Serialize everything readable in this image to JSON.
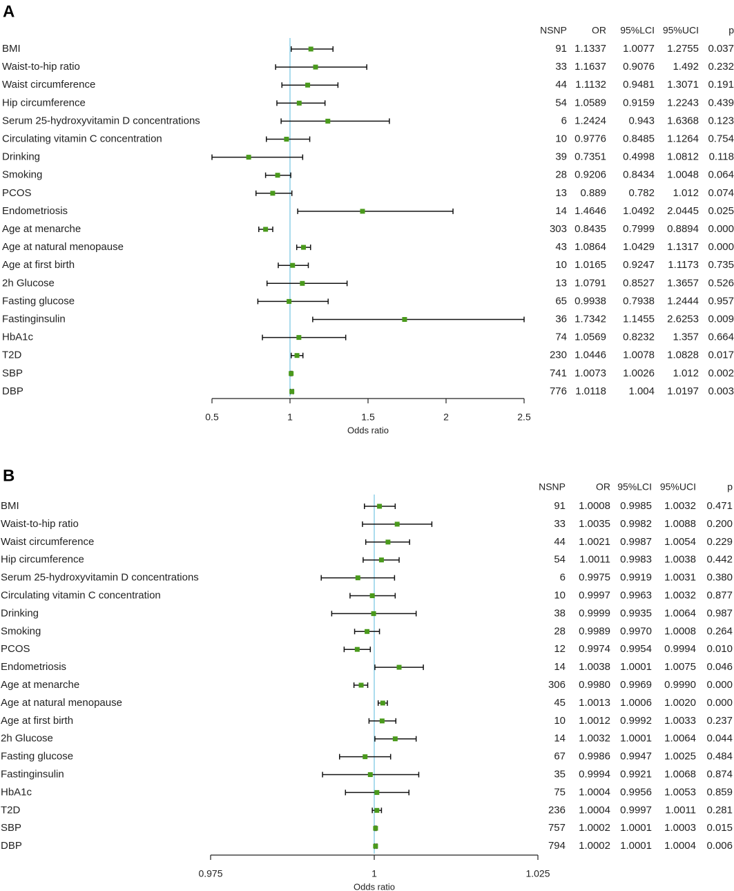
{
  "chart_data": [
    {
      "type": "forest",
      "panel": "A",
      "xlabel": "Odds ratio",
      "xlim": [
        0.5,
        2.5
      ],
      "xticks": [
        "0.5",
        "1",
        "1.5",
        "2",
        "2.5"
      ],
      "xtick_values": [
        0.5,
        1,
        1.5,
        2,
        2.5
      ],
      "reference": 1,
      "columns": [
        "NSNP",
        "OR",
        "95%LCI",
        "95%UCI",
        "p"
      ],
      "rows": [
        {
          "label": "BMI",
          "nsnp": "91",
          "or": "1.1337",
          "lci": "1.0077",
          "uci": "1.2755",
          "p": "0.037"
        },
        {
          "label": "Waist-to-hip ratio",
          "nsnp": "33",
          "or": "1.1637",
          "lci": "0.9076",
          "uci": "1.492",
          "p": "0.232"
        },
        {
          "label": "Waist circumference",
          "nsnp": "44",
          "or": "1.1132",
          "lci": "0.9481",
          "uci": "1.3071",
          "p": "0.191"
        },
        {
          "label": "Hip circumference",
          "nsnp": "54",
          "or": "1.0589",
          "lci": "0.9159",
          "uci": "1.2243",
          "p": "0.439"
        },
        {
          "label": "Serum 25-hydroxyvitamin D concentrations",
          "nsnp": "6",
          "or": "1.2424",
          "lci": "0.943",
          "uci": "1.6368",
          "p": "0.123"
        },
        {
          "label": "Circulating vitamin C concentration",
          "nsnp": "10",
          "or": "0.9776",
          "lci": "0.8485",
          "uci": "1.1264",
          "p": "0.754"
        },
        {
          "label": "Drinking",
          "nsnp": "39",
          "or": "0.7351",
          "lci": "0.4998",
          "uci": "1.0812",
          "p": "0.118"
        },
        {
          "label": "Smoking",
          "nsnp": "28",
          "or": "0.9206",
          "lci": "0.8434",
          "uci": "1.0048",
          "p": "0.064"
        },
        {
          "label": "PCOS",
          "nsnp": "13",
          "or": "0.889",
          "lci": "0.782",
          "uci": "1.012",
          "p": "0.074"
        },
        {
          "label": "Endometriosis",
          "nsnp": "14",
          "or": "1.4646",
          "lci": "1.0492",
          "uci": "2.0445",
          "p": "0.025"
        },
        {
          "label": "Age at menarche",
          "nsnp": "303",
          "or": "0.8435",
          "lci": "0.7999",
          "uci": "0.8894",
          "p": "0.000"
        },
        {
          "label": "Age at natural menopause",
          "nsnp": "43",
          "or": "1.0864",
          "lci": "1.0429",
          "uci": "1.1317",
          "p": "0.000"
        },
        {
          "label": "Age at first birth",
          "nsnp": "10",
          "or": "1.0165",
          "lci": "0.9247",
          "uci": "1.1173",
          "p": "0.735"
        },
        {
          "label": "2h Glucose",
          "nsnp": "13",
          "or": "1.0791",
          "lci": "0.8527",
          "uci": "1.3657",
          "p": "0.526"
        },
        {
          "label": "Fasting glucose",
          "nsnp": "65",
          "or": "0.9938",
          "lci": "0.7938",
          "uci": "1.2444",
          "p": "0.957"
        },
        {
          "label": "Fastinginsulin",
          "nsnp": "36",
          "or": "1.7342",
          "lci": "1.1455",
          "uci": "2.6253",
          "p": "0.009"
        },
        {
          "label": "HbA1c",
          "nsnp": "74",
          "or": "1.0569",
          "lci": "0.8232",
          "uci": "1.357",
          "p": "0.664"
        },
        {
          "label": "T2D",
          "nsnp": "230",
          "or": "1.0446",
          "lci": "1.0078",
          "uci": "1.0828",
          "p": "0.017"
        },
        {
          "label": "SBP",
          "nsnp": "741",
          "or": "1.0073",
          "lci": "1.0026",
          "uci": "1.012",
          "p": "0.002"
        },
        {
          "label": "DBP",
          "nsnp": "776",
          "or": "1.0118",
          "lci": "1.004",
          "uci": "1.0197",
          "p": "0.003"
        }
      ]
    },
    {
      "type": "forest",
      "panel": "B",
      "xlabel": "Odds ratio",
      "xlim": [
        0.975,
        1.025
      ],
      "xticks": [
        "0.975",
        "1",
        "1.025"
      ],
      "xtick_values": [
        0.975,
        1,
        1.025
      ],
      "reference": 1,
      "columns": [
        "NSNP",
        "OR",
        "95%LCI",
        "95%UCI",
        "p"
      ],
      "rows": [
        {
          "label": "BMI",
          "nsnp": "91",
          "or": "1.0008",
          "lci": "0.9985",
          "uci": "1.0032",
          "p": "0.471"
        },
        {
          "label": "Waist-to-hip ratio",
          "nsnp": "33",
          "or": "1.0035",
          "lci": "0.9982",
          "uci": "1.0088",
          "p": "0.200"
        },
        {
          "label": "Waist circumference",
          "nsnp": "44",
          "or": "1.0021",
          "lci": "0.9987",
          "uci": "1.0054",
          "p": "0.229"
        },
        {
          "label": "Hip circumference",
          "nsnp": "54",
          "or": "1.0011",
          "lci": "0.9983",
          "uci": "1.0038",
          "p": "0.442"
        },
        {
          "label": "Serum 25-hydroxyvitamin D concentrations",
          "nsnp": "6",
          "or": "0.9975",
          "lci": "0.9919",
          "uci": "1.0031",
          "p": "0.380"
        },
        {
          "label": "Circulating vitamin C concentration",
          "nsnp": "10",
          "or": "0.9997",
          "lci": "0.9963",
          "uci": "1.0032",
          "p": "0.877"
        },
        {
          "label": "Drinking",
          "nsnp": "38",
          "or": "0.9999",
          "lci": "0.9935",
          "uci": "1.0064",
          "p": "0.987"
        },
        {
          "label": "Smoking",
          "nsnp": "28",
          "or": "0.9989",
          "lci": "0.9970",
          "uci": "1.0008",
          "p": "0.264"
        },
        {
          "label": "PCOS",
          "nsnp": "12",
          "or": "0.9974",
          "lci": "0.9954",
          "uci": "0.9994",
          "p": "0.010"
        },
        {
          "label": "Endometriosis",
          "nsnp": "14",
          "or": "1.0038",
          "lci": "1.0001",
          "uci": "1.0075",
          "p": "0.046"
        },
        {
          "label": "Age at menarche",
          "nsnp": "306",
          "or": "0.9980",
          "lci": "0.9969",
          "uci": "0.9990",
          "p": "0.000"
        },
        {
          "label": "Age at natural menopause",
          "nsnp": "45",
          "or": "1.0013",
          "lci": "1.0006",
          "uci": "1.0020",
          "p": "0.000"
        },
        {
          "label": "Age at first birth",
          "nsnp": "10",
          "or": "1.0012",
          "lci": "0.9992",
          "uci": "1.0033",
          "p": "0.237"
        },
        {
          "label": "2h Glucose",
          "nsnp": "14",
          "or": "1.0032",
          "lci": "1.0001",
          "uci": "1.0064",
          "p": "0.044"
        },
        {
          "label": "Fasting glucose",
          "nsnp": "67",
          "or": "0.9986",
          "lci": "0.9947",
          "uci": "1.0025",
          "p": "0.484"
        },
        {
          "label": "Fastinginsulin",
          "nsnp": "35",
          "or": "0.9994",
          "lci": "0.9921",
          "uci": "1.0068",
          "p": "0.874"
        },
        {
          "label": "HbA1c",
          "nsnp": "75",
          "or": "1.0004",
          "lci": "0.9956",
          "uci": "1.0053",
          "p": "0.859"
        },
        {
          "label": "T2D",
          "nsnp": "236",
          "or": "1.0004",
          "lci": "0.9997",
          "uci": "1.0011",
          "p": "0.281"
        },
        {
          "label": "SBP",
          "nsnp": "757",
          "or": "1.0002",
          "lci": "1.0001",
          "uci": "1.0003",
          "p": "0.015"
        },
        {
          "label": "DBP",
          "nsnp": "794",
          "or": "1.0002",
          "lci": "1.0001",
          "uci": "1.0004",
          "p": "0.006"
        }
      ]
    }
  ],
  "colors": {
    "point": "#4a9a1c",
    "reference_line": "#7ec8e3",
    "whisker": "#111111",
    "axis": "#222222"
  }
}
